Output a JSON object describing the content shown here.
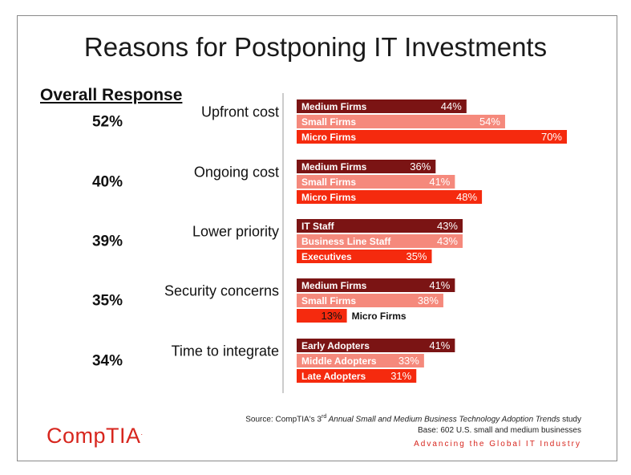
{
  "title": "Reasons for Postponing IT Investments",
  "overall_heading": "Overall Response",
  "colors": {
    "dark": "#7b1414",
    "light": "#f5897c",
    "bright": "#f52a0e",
    "accent": "#d7261e"
  },
  "chart_data": {
    "type": "bar",
    "orientation": "horizontal",
    "title": "Reasons for Postponing IT Investments",
    "xlim": [
      0,
      70
    ],
    "grid": false,
    "groups": [
      {
        "reason": "Upfront cost",
        "overall": "52%",
        "bars": [
          {
            "segment": "Medium Firms",
            "value": 44,
            "label": "44%",
            "shade": "dark"
          },
          {
            "segment": "Small Firms",
            "value": 54,
            "label": "54%",
            "shade": "light"
          },
          {
            "segment": "Micro Firms",
            "value": 70,
            "label": "70%",
            "shade": "bright"
          }
        ]
      },
      {
        "reason": "Ongoing cost",
        "overall": "40%",
        "bars": [
          {
            "segment": "Medium Firms",
            "value": 36,
            "label": "36%",
            "shade": "dark"
          },
          {
            "segment": "Small Firms",
            "value": 41,
            "label": "41%",
            "shade": "light"
          },
          {
            "segment": "Micro Firms",
            "value": 48,
            "label": "48%",
            "shade": "bright"
          }
        ]
      },
      {
        "reason": "Lower priority",
        "overall": "39%",
        "bars": [
          {
            "segment": "IT Staff",
            "value": 43,
            "label": "43%",
            "shade": "dark"
          },
          {
            "segment": "Business Line Staff",
            "value": 43,
            "label": "43%",
            "shade": "light"
          },
          {
            "segment": "Executives",
            "value": 35,
            "label": "35%",
            "shade": "bright"
          }
        ]
      },
      {
        "reason": "Security concerns",
        "overall": "35%",
        "bars": [
          {
            "segment": "Medium Firms",
            "value": 41,
            "label": "41%",
            "shade": "dark"
          },
          {
            "segment": "Small Firms",
            "value": 38,
            "label": "38%",
            "shade": "light"
          },
          {
            "segment": "Micro Firms",
            "value": 13,
            "label": "13%",
            "shade": "bright"
          }
        ]
      },
      {
        "reason": "Time to integrate",
        "overall": "34%",
        "bars": [
          {
            "segment": "Early Adopters",
            "value": 41,
            "label": "41%",
            "shade": "dark"
          },
          {
            "segment": "Middle Adopters",
            "value": 33,
            "label": "33%",
            "shade": "light"
          },
          {
            "segment": "Late Adopters",
            "value": 31,
            "label": "31%",
            "shade": "bright"
          }
        ]
      }
    ]
  },
  "footer": {
    "source_prefix": "Source: CompTIA's ",
    "source_ordinal": "3",
    "source_ordinal_suffix": "rd",
    "source_title": " Annual Small and Medium Business Technology Adoption Trends",
    "source_suffix": " study",
    "base": "Base: 602 U.S. small and medium businesses",
    "tagline": "Advancing the Global IT Industry"
  },
  "logo": {
    "text": "CompTIA",
    "mark": "."
  }
}
